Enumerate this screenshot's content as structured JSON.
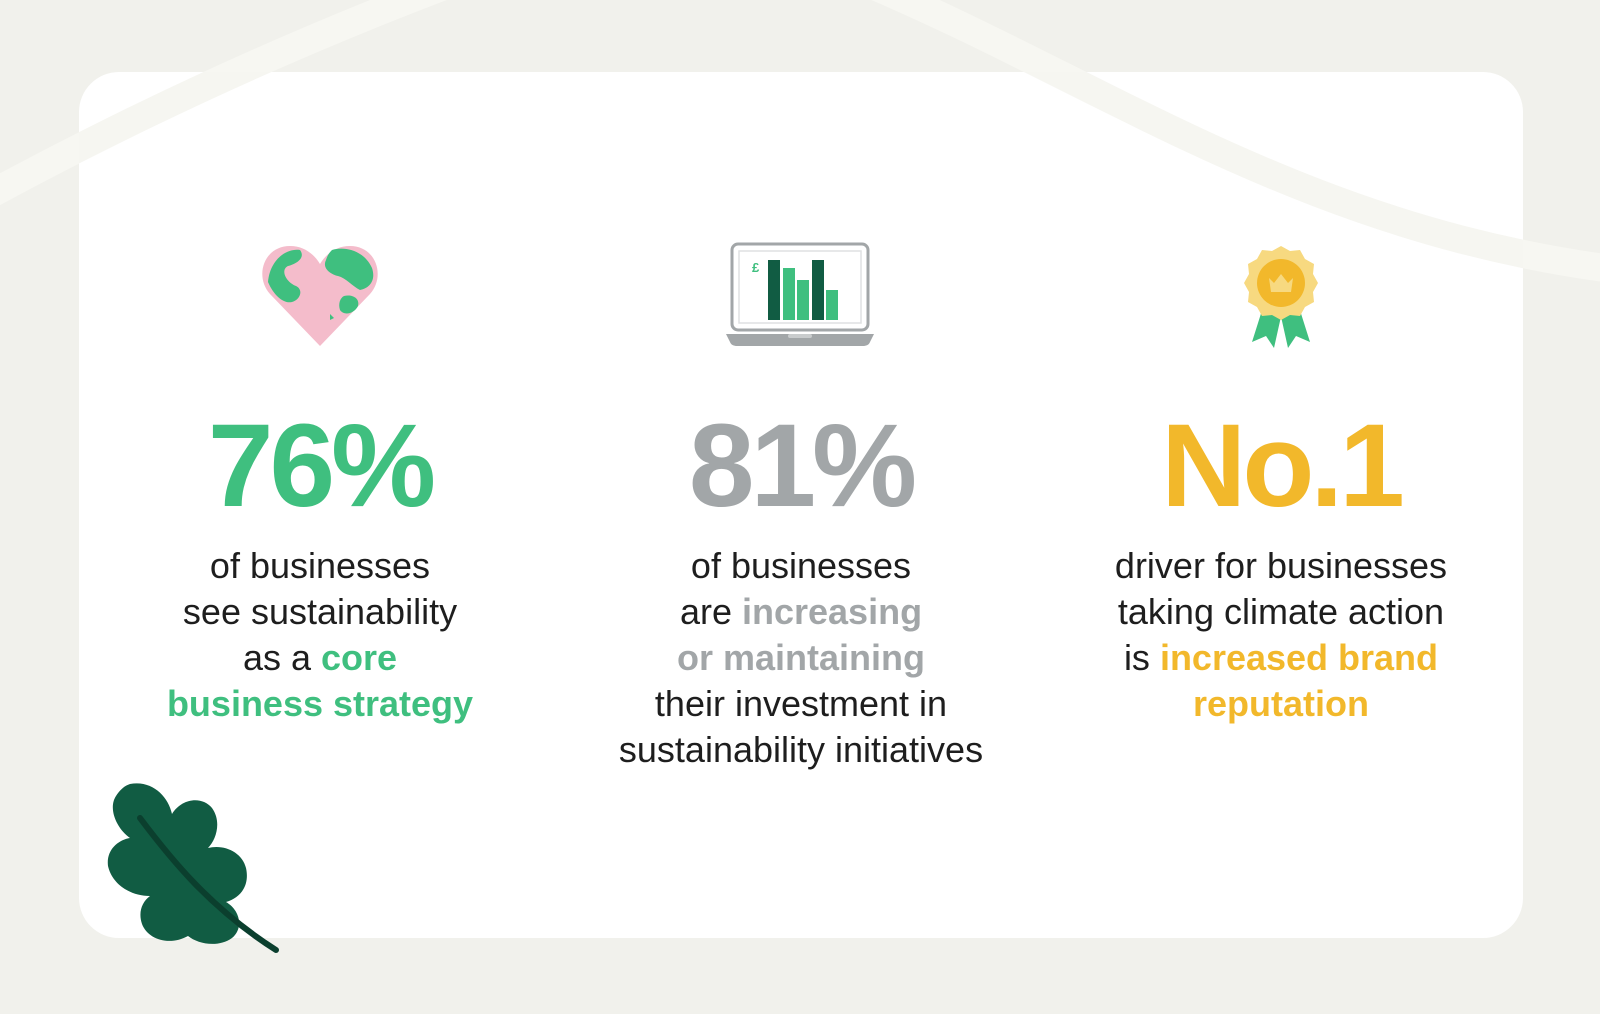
{
  "colors": {
    "background": "#f1f1ec",
    "card": "#ffffff",
    "green": "#3fbf7f",
    "grey": "#a2a6a8",
    "yellow": "#f2b82b",
    "dark_green": "#115c43",
    "text": "#1e1e1e"
  },
  "stats": [
    {
      "icon": "heart-globe-icon",
      "value": "76%",
      "lines": {
        "l1": "of businesses",
        "l2": "see sustainability",
        "l3_plain": "as a ",
        "l3_highlight": "core",
        "l4_highlight": "business strategy"
      }
    },
    {
      "icon": "laptop-bar-chart-icon",
      "currency_symbol": "£",
      "value": "81%",
      "lines": {
        "l1": "of businesses",
        "l2_plain": "are ",
        "l2_highlight": "increasing",
        "l3_highlight": "or maintaining",
        "l4": "their investment in",
        "l5": "sustainability initiatives"
      }
    },
    {
      "icon": "award-rosette-icon",
      "value": "No.1",
      "lines": {
        "l1": "driver for businesses",
        "l2": "taking climate action",
        "l3_plain": "is ",
        "l3_highlight": "increased brand",
        "l4_highlight": "reputation"
      }
    }
  ],
  "decorations": {
    "leaf": "oak-leaf-icon"
  }
}
